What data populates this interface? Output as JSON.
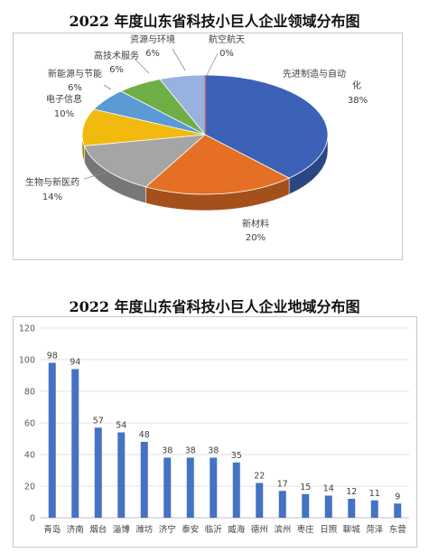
{
  "charts": {
    "pie_title": "2022 年度山东省科技小巨人企业领域分布图",
    "bar_title": "2022 年度山东省科技小巨人企业地域分布图"
  },
  "chart_data": [
    {
      "type": "pie",
      "title": "2022 年度山东省科技小巨人企业领域分布图",
      "slices": [
        {
          "label": "先进制造与自动化",
          "value": 38,
          "display": "38%",
          "color": "#3b62b6"
        },
        {
          "label": "新材料",
          "value": 20,
          "display": "20%",
          "color": "#e46f25"
        },
        {
          "label": "生物与新医药",
          "value": 14,
          "display": "14%",
          "color": "#a5a5a5"
        },
        {
          "label": "电子信息",
          "value": 10,
          "display": "10%",
          "color": "#f2b90f"
        },
        {
          "label": "新能源与节能",
          "value": 6,
          "display": "6%",
          "color": "#5a9ad5"
        },
        {
          "label": "高技术服务",
          "value": 6,
          "display": "6%",
          "color": "#6fae45"
        },
        {
          "label": "资源与环境",
          "value": 6,
          "display": "6%",
          "color": "#98b2e0"
        },
        {
          "label": "航空航天",
          "value": 0,
          "display": "0%",
          "color": "#e07b6b"
        }
      ]
    },
    {
      "type": "bar",
      "title": "2022 年度山东省科技小巨人企业地域分布图",
      "categories": [
        "青岛",
        "济南",
        "烟台",
        "淄博",
        "潍坊",
        "济宁",
        "泰安",
        "临沂",
        "威海",
        "德州",
        "滨州",
        "枣庄",
        "日照",
        "聊城",
        "菏泽",
        "东营"
      ],
      "values": [
        98,
        94,
        57,
        54,
        48,
        38,
        38,
        38,
        35,
        22,
        17,
        15,
        14,
        12,
        11,
        9
      ],
      "ylim": [
        0,
        120
      ],
      "yticks": [
        0,
        20,
        40,
        60,
        80,
        100,
        120
      ],
      "color": "#4472c4"
    }
  ]
}
